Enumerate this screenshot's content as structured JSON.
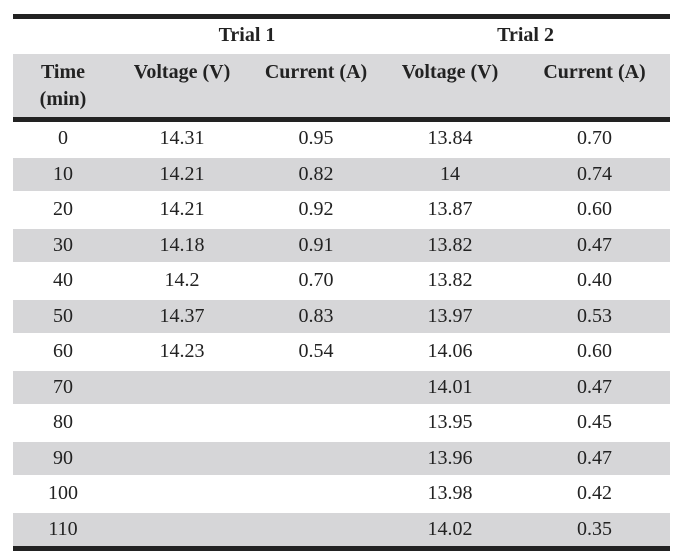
{
  "table": {
    "group_headers": [
      "Trial 1",
      "Trial 2"
    ],
    "column_headers": {
      "time_line1": "Time",
      "time_line2": "(min)",
      "voltage_1": "Voltage (V)",
      "current_1": "Current (A)",
      "voltage_2": "Voltage (V)",
      "current_2": "Current (A)"
    },
    "rows": [
      [
        "0",
        "14.31",
        "0.95",
        "13.84",
        "0.70"
      ],
      [
        "10",
        "14.21",
        "0.82",
        "14",
        "0.74"
      ],
      [
        "20",
        "14.21",
        "0.92",
        "13.87",
        "0.60"
      ],
      [
        "30",
        "14.18",
        "0.91",
        "13.82",
        "0.47"
      ],
      [
        "40",
        "14.2",
        "0.70",
        "13.82",
        "0.40"
      ],
      [
        "50",
        "14.37",
        "0.83",
        "13.97",
        "0.53"
      ],
      [
        "60",
        "14.23",
        "0.54",
        "14.06",
        "0.60"
      ],
      [
        "70",
        "",
        "",
        "14.01",
        "0.47"
      ],
      [
        "80",
        "",
        "",
        "13.95",
        "0.45"
      ],
      [
        "90",
        "",
        "",
        "13.96",
        "0.47"
      ],
      [
        "100",
        "",
        "",
        "13.98",
        "0.42"
      ],
      [
        "110",
        "",
        "",
        "14.02",
        "0.35"
      ]
    ]
  }
}
